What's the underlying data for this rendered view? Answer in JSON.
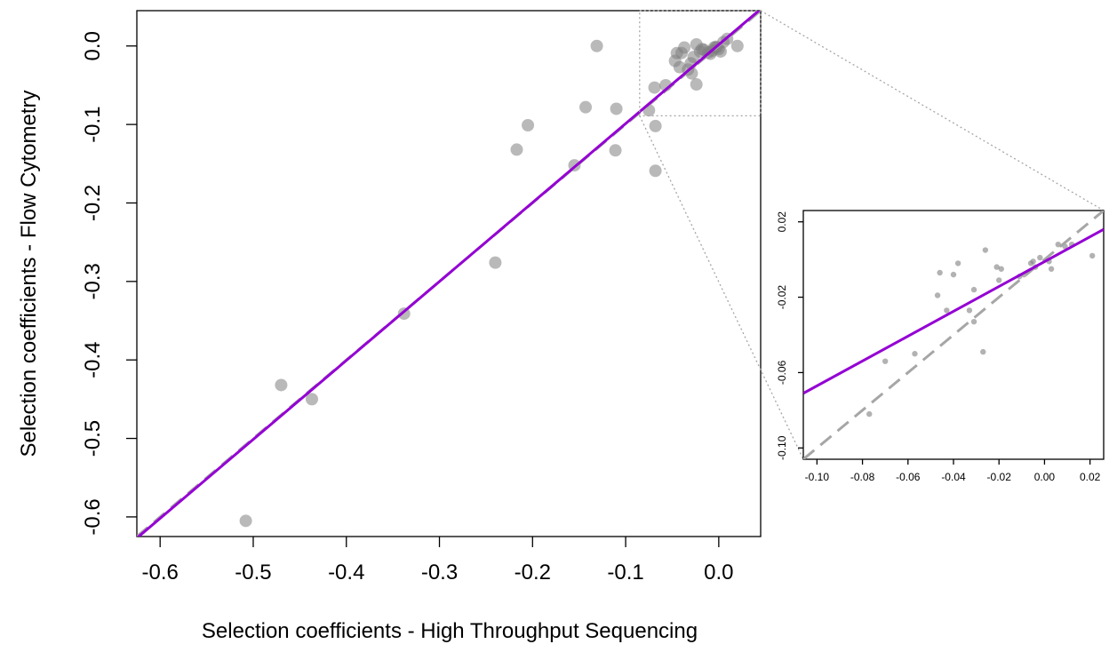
{
  "chart_data": [
    {
      "type": "scatter",
      "panel": "main",
      "xlabel": "Selection coefficients - High Throughput Sequencing",
      "ylabel": "Selection coefficients - Flow Cytometry",
      "xlim": [
        -0.625,
        0.045
      ],
      "ylim": [
        -0.625,
        0.045
      ],
      "xticks": [
        "-0.6",
        "-0.5",
        "-0.4",
        "-0.3",
        "-0.2",
        "-0.1",
        "0.0"
      ],
      "xtick_values": [
        -0.6,
        -0.5,
        -0.4,
        -0.3,
        -0.2,
        -0.1,
        0.0
      ],
      "yticks": [
        "-0.6",
        "-0.5",
        "-0.4",
        "-0.3",
        "-0.2",
        "-0.1",
        "0.0"
      ],
      "ytick_values": [
        -0.6,
        -0.5,
        -0.4,
        -0.3,
        -0.2,
        -0.1,
        0.0
      ],
      "points": [
        {
          "x": -0.508,
          "y": -0.605
        },
        {
          "x": -0.47,
          "y": -0.432
        },
        {
          "x": -0.437,
          "y": -0.45
        },
        {
          "x": -0.338,
          "y": -0.341
        },
        {
          "x": -0.24,
          "y": -0.276
        },
        {
          "x": -0.217,
          "y": -0.132
        },
        {
          "x": -0.205,
          "y": -0.101
        },
        {
          "x": -0.155,
          "y": -0.152
        },
        {
          "x": -0.143,
          "y": -0.078
        },
        {
          "x": -0.131,
          "y": 0.0
        },
        {
          "x": -0.111,
          "y": -0.133
        },
        {
          "x": -0.11,
          "y": -0.08
        },
        {
          "x": -0.075,
          "y": -0.082
        },
        {
          "x": -0.069,
          "y": -0.053
        },
        {
          "x": -0.068,
          "y": -0.102
        },
        {
          "x": -0.068,
          "y": -0.159
        },
        {
          "x": -0.057,
          "y": -0.05
        },
        {
          "x": -0.047,
          "y": -0.019
        },
        {
          "x": -0.045,
          "y": -0.009
        },
        {
          "x": -0.042,
          "y": -0.027
        },
        {
          "x": -0.04,
          "y": -0.009
        },
        {
          "x": -0.037,
          "y": -0.002
        },
        {
          "x": -0.033,
          "y": -0.03
        },
        {
          "x": -0.03,
          "y": -0.022
        },
        {
          "x": -0.029,
          "y": -0.035
        },
        {
          "x": -0.027,
          "y": -0.014
        },
        {
          "x": -0.024,
          "y": 0.002
        },
        {
          "x": -0.024,
          "y": -0.049
        },
        {
          "x": -0.02,
          "y": -0.007
        },
        {
          "x": -0.018,
          "y": -0.004
        },
        {
          "x": -0.016,
          "y": -0.005
        },
        {
          "x": -0.011,
          "y": -0.008
        },
        {
          "x": -0.009,
          "y": -0.01
        },
        {
          "x": -0.007,
          "y": -0.006
        },
        {
          "x": -0.005,
          "y": -0.002
        },
        {
          "x": -0.003,
          "y": -0.001
        },
        {
          "x": -0.002,
          "y": -0.002
        },
        {
          "x": 0.0,
          "y": -0.004
        },
        {
          "x": 0.002,
          "y": -0.007
        },
        {
          "x": 0.005,
          "y": 0.005
        },
        {
          "x": 0.009,
          "y": 0.009
        },
        {
          "x": 0.02,
          "y": 0.0
        }
      ],
      "lines": [
        {
          "style": "dashed",
          "color": "#a6a6a6",
          "from": [
            -0.625,
            -0.625
          ],
          "to": [
            0.045,
            0.045
          ]
        },
        {
          "style": "solid",
          "color": "#9400d3",
          "from": [
            -0.625,
            -0.627
          ],
          "to": [
            0.045,
            0.047
          ]
        }
      ],
      "zoom_region": {
        "x": [
          -0.085,
          0.045
        ],
        "y": [
          -0.089,
          0.045
        ]
      }
    },
    {
      "type": "scatter",
      "panel": "inset",
      "xlim": [
        -0.106,
        0.026
      ],
      "ylim": [
        -0.106,
        0.026
      ],
      "xticks": [
        "-0.10",
        "-0.08",
        "-0.06",
        "-0.04",
        "-0.02",
        "0.00",
        "0.02"
      ],
      "xtick_values": [
        -0.1,
        -0.08,
        -0.06,
        -0.04,
        -0.02,
        0.0,
        0.02
      ],
      "yticks": [
        "-0.10",
        "-0.06",
        "-0.02",
        "0.02"
      ],
      "ytick_values": [
        -0.1,
        -0.06,
        -0.02,
        0.02
      ],
      "points": [
        {
          "x": -0.077,
          "y": -0.082
        },
        {
          "x": -0.07,
          "y": -0.054
        },
        {
          "x": -0.057,
          "y": -0.05
        },
        {
          "x": -0.047,
          "y": -0.019
        },
        {
          "x": -0.046,
          "y": -0.007
        },
        {
          "x": -0.043,
          "y": -0.027
        },
        {
          "x": -0.04,
          "y": -0.008
        },
        {
          "x": -0.038,
          "y": -0.002
        },
        {
          "x": -0.033,
          "y": -0.027
        },
        {
          "x": -0.031,
          "y": -0.016
        },
        {
          "x": -0.031,
          "y": -0.033
        },
        {
          "x": -0.027,
          "y": -0.049
        },
        {
          "x": -0.026,
          "y": 0.005
        },
        {
          "x": -0.021,
          "y": -0.004
        },
        {
          "x": -0.02,
          "y": -0.011
        },
        {
          "x": -0.019,
          "y": -0.005
        },
        {
          "x": -0.011,
          "y": -0.009
        },
        {
          "x": -0.009,
          "y": -0.008
        },
        {
          "x": -0.006,
          "y": -0.002
        },
        {
          "x": -0.005,
          "y": -0.001
        },
        {
          "x": -0.004,
          "y": -0.004
        },
        {
          "x": -0.002,
          "y": 0.001
        },
        {
          "x": 0.002,
          "y": -0.001
        },
        {
          "x": 0.003,
          "y": -0.005
        },
        {
          "x": 0.006,
          "y": 0.008
        },
        {
          "x": 0.009,
          "y": 0.007
        },
        {
          "x": 0.012,
          "y": 0.008
        },
        {
          "x": 0.021,
          "y": 0.002
        }
      ],
      "lines": [
        {
          "style": "dashed",
          "color": "#a6a6a6",
          "from": [
            -0.106,
            -0.106
          ],
          "to": [
            0.026,
            0.026
          ]
        },
        {
          "style": "solid",
          "color": "#9400d3",
          "from": [
            -0.106,
            -0.071
          ],
          "to": [
            0.026,
            0.016
          ]
        }
      ]
    }
  ]
}
